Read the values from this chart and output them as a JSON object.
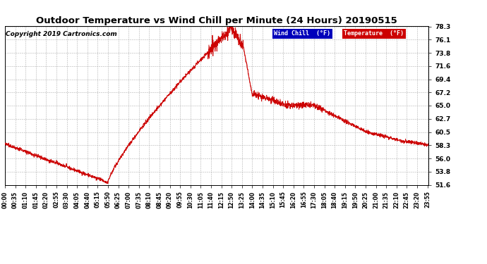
{
  "title": "Outdoor Temperature vs Wind Chill per Minute (24 Hours) 20190515",
  "copyright": "Copyright 2019 Cartronics.com",
  "ylabel_right_ticks": [
    51.6,
    53.8,
    56.0,
    58.3,
    60.5,
    62.7,
    65.0,
    67.2,
    69.4,
    71.6,
    73.8,
    76.1,
    78.3
  ],
  "ymin": 51.6,
  "ymax": 78.3,
  "legend_wind_chill": "Wind Chill  (°F)",
  "legend_temperature": "Temperature  (°F)",
  "line_color": "#cc0000",
  "wind_chill_legend_bg": "#0000bb",
  "temperature_legend_bg": "#cc0000",
  "background_color": "#ffffff",
  "grid_color": "#b0b0b0",
  "title_fontsize": 9.5,
  "copyright_fontsize": 6.5,
  "tick_fontsize": 5.5,
  "ytick_fontsize": 6.5
}
